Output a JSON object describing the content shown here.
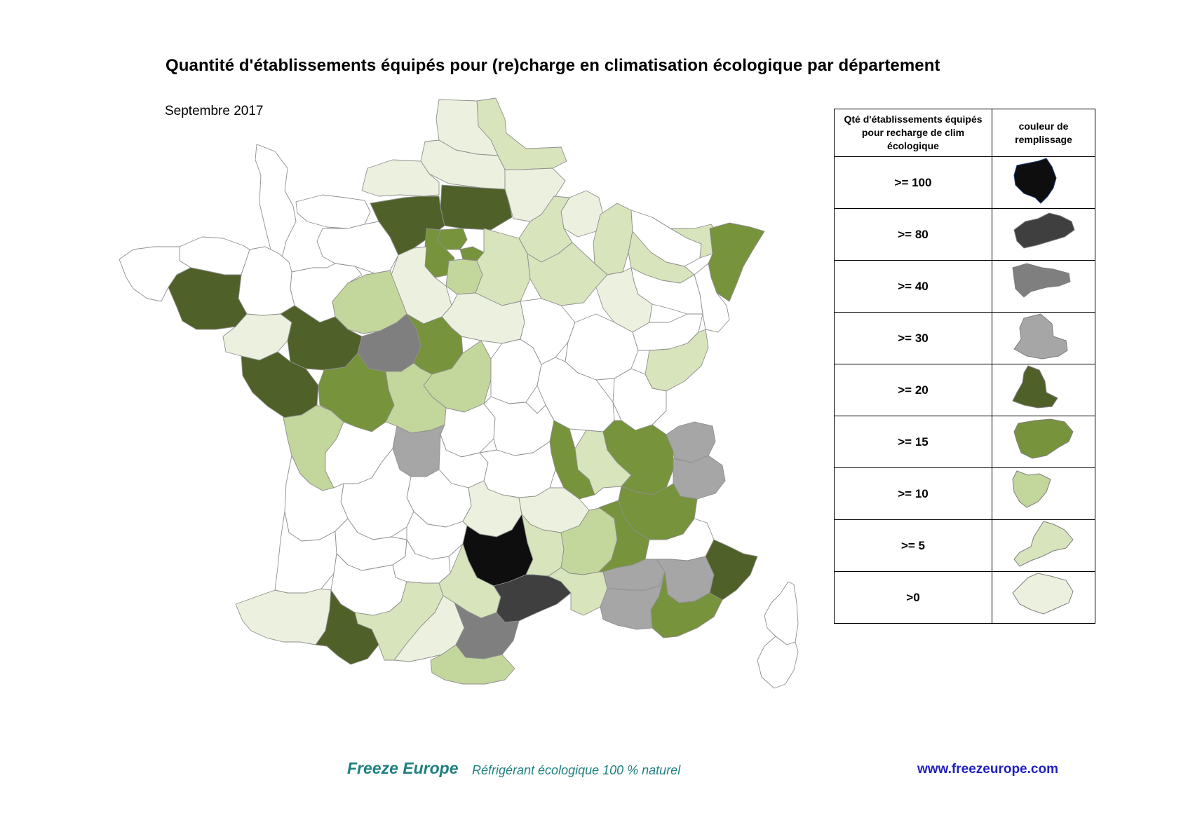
{
  "title": "Quantité d'établissements équipés pour (re)charge en climatisation écologique par département",
  "subtitle": "Septembre 2017",
  "colors": {
    "c100": "#0e0e0e",
    "c80": "#3f3f3f",
    "c40": "#7f7f7f",
    "c30": "#a6a6a6",
    "c20": "#4f6129",
    "c15": "#77933c",
    "c10": "#c3d69b",
    "c5": "#d7e4bc",
    "c0": "#ebf1de",
    "none": "#ffffff"
  },
  "legend": {
    "header_count": "Qté d'établissements équipés pour recharge de clim écologique",
    "header_color": "couleur de remplissage",
    "rows": [
      {
        "label": ">= 100",
        "color": "#0e0e0e"
      },
      {
        "label": ">= 80",
        "color": "#3f3f3f"
      },
      {
        "label": ">= 40",
        "color": "#7f7f7f"
      },
      {
        "label": ">= 30",
        "color": "#a6a6a6"
      },
      {
        "label": ">= 20",
        "color": "#4f6129"
      },
      {
        "label": ">= 15",
        "color": "#77933c"
      },
      {
        "label": ">= 10",
        "color": "#c3d69b"
      },
      {
        "label": ">= 5",
        "color": "#d7e4bc"
      },
      {
        "label": ">0",
        "color": "#ebf1de"
      }
    ]
  },
  "footer": {
    "brand": "Freeze  Europe",
    "tagline": "Réfrigérant écologique 100 % naturel",
    "url": "www.freezeurope.com"
  }
}
